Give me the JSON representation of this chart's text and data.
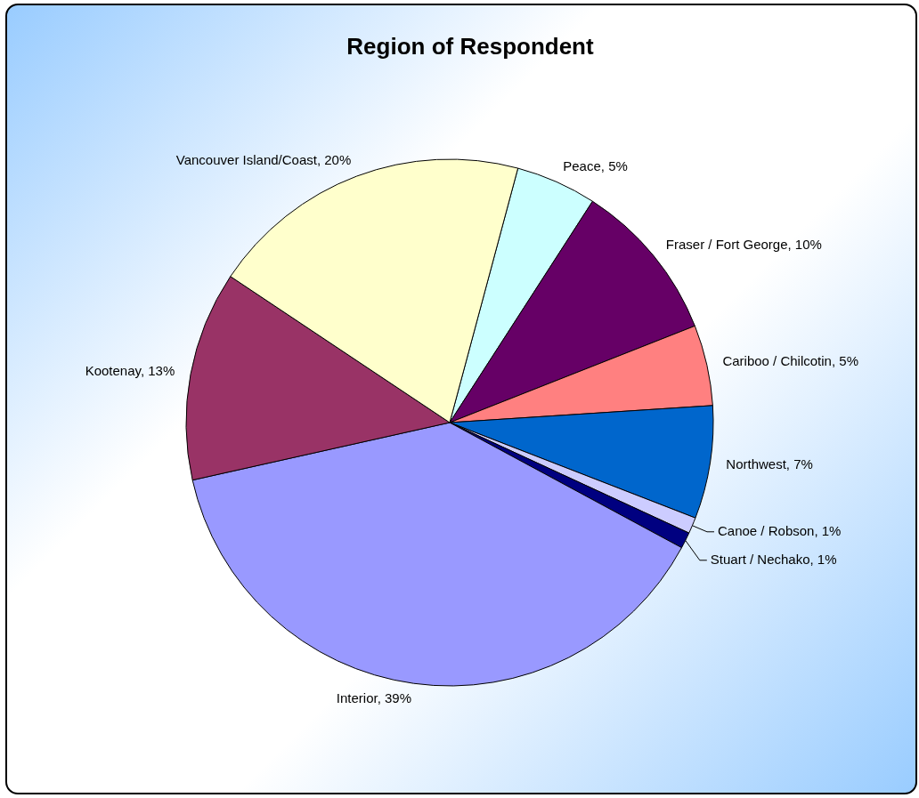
{
  "chart_data": {
    "type": "pie",
    "title": "Region of Respondent",
    "categories": [
      "Peace",
      "Fraser / Fort George",
      "Cariboo / Chilcotin",
      "Northwest",
      "Canoe / Robson",
      "Stuart / Nechako",
      "Interior",
      "Kootenay",
      "Vancouver Island/Coast"
    ],
    "values": [
      5,
      10,
      5,
      7,
      1,
      1,
      39,
      13,
      20
    ],
    "value_labels": [
      "5%",
      "10%",
      "5%",
      "7%",
      "1%",
      "1%",
      "39%",
      "13%",
      "20%"
    ],
    "colors": [
      "#ccffff",
      "#660066",
      "#ff8080",
      "#0066cc",
      "#ccccff",
      "#000080",
      "#9999ff",
      "#993366",
      "#ffffcc"
    ],
    "legend": false
  }
}
